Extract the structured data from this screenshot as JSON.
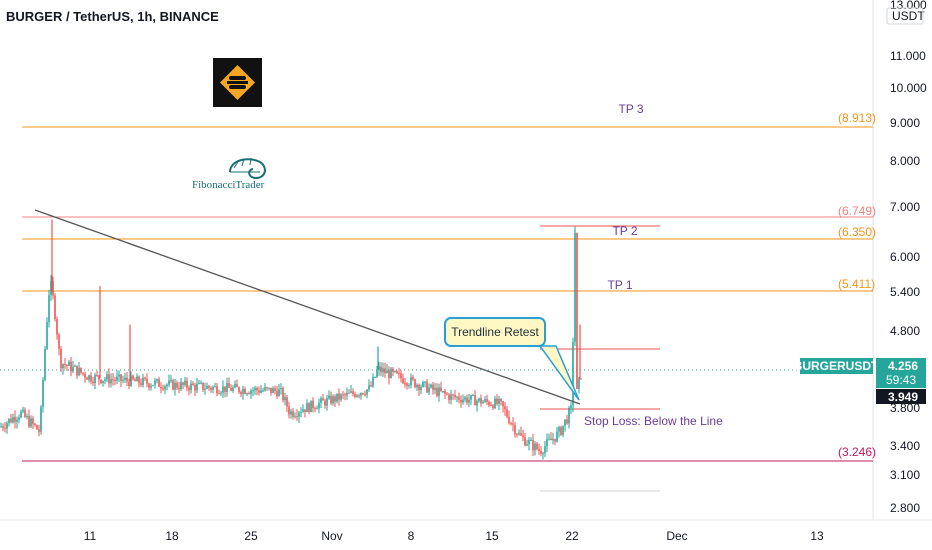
{
  "header": {
    "title": "BURGER / TetherUS, 1h, BINANCE"
  },
  "price_axis": {
    "unit": "USDT",
    "ticks": [
      "13.000",
      "11.000",
      "10.000",
      "9.000",
      "8.000",
      "7.000",
      "6.000",
      "5.400",
      "4.800",
      "3.800",
      "3.400",
      "3.100",
      "2.800"
    ]
  },
  "time_axis": {
    "ticks": [
      "11",
      "18",
      "25",
      "Nov",
      "8",
      "15",
      "22",
      "Dec",
      "13"
    ]
  },
  "levels": [
    {
      "value": "(8.913)",
      "color": "#f7931a"
    },
    {
      "value": "(6.749)",
      "color": "#f08080"
    },
    {
      "value": "(6.350)",
      "color": "#f7931a"
    },
    {
      "value": "(5.411)",
      "color": "#f7931a"
    },
    {
      "value": "(3.246)",
      "color": "#c2185b"
    }
  ],
  "annotations": {
    "tp3": "TP 3",
    "tp2": "TP 2",
    "tp1": "TP 1",
    "stop_loss": "Stop Loss: Below the Line",
    "callout": "Trendline Retest"
  },
  "price_tags": {
    "symbol": "BURGERUSDT",
    "last": "4.256",
    "countdown": "59:43",
    "level": "3.949"
  },
  "logos": {
    "fib": "FibonacciTrader"
  },
  "colors": {
    "up": "#26a69a",
    "down": "#ef5350",
    "fib_orange": "#f7931a",
    "trendline": "#555555",
    "tp_text": "#6a3d9a"
  },
  "chart_data": {
    "type": "candlestick",
    "title": "BURGER / TetherUS, 1h, BINANCE",
    "y_unit": "USDT",
    "y_range": [
      2.6,
      13.2
    ],
    "x_ticks": [
      "11",
      "18",
      "25",
      "Nov",
      "8",
      "15",
      "22",
      "Dec",
      "13"
    ],
    "horizontal_levels": [
      8.913,
      6.749,
      6.35,
      5.411,
      3.246
    ],
    "last_price": 4.256,
    "close_path": [
      {
        "date": "Oct 5",
        "price": 3.6
      },
      {
        "date": "Oct 8",
        "price": 6.2
      },
      {
        "date": "Oct 10",
        "price": 4.3
      },
      {
        "date": "Oct 12",
        "price": 4.1
      },
      {
        "date": "Oct 18",
        "price": 4.2
      },
      {
        "date": "Oct 25",
        "price": 4.05
      },
      {
        "date": "Oct 28",
        "price": 3.75
      },
      {
        "date": "Nov 4",
        "price": 4.25
      },
      {
        "date": "Nov 11",
        "price": 4.0
      },
      {
        "date": "Nov 15",
        "price": 3.9
      },
      {
        "date": "Nov 19",
        "price": 3.35
      },
      {
        "date": "Nov 21",
        "price": 3.75
      },
      {
        "date": "Nov 22",
        "price": 6.5
      },
      {
        "date": "Nov 22",
        "price": 4.256
      }
    ]
  }
}
